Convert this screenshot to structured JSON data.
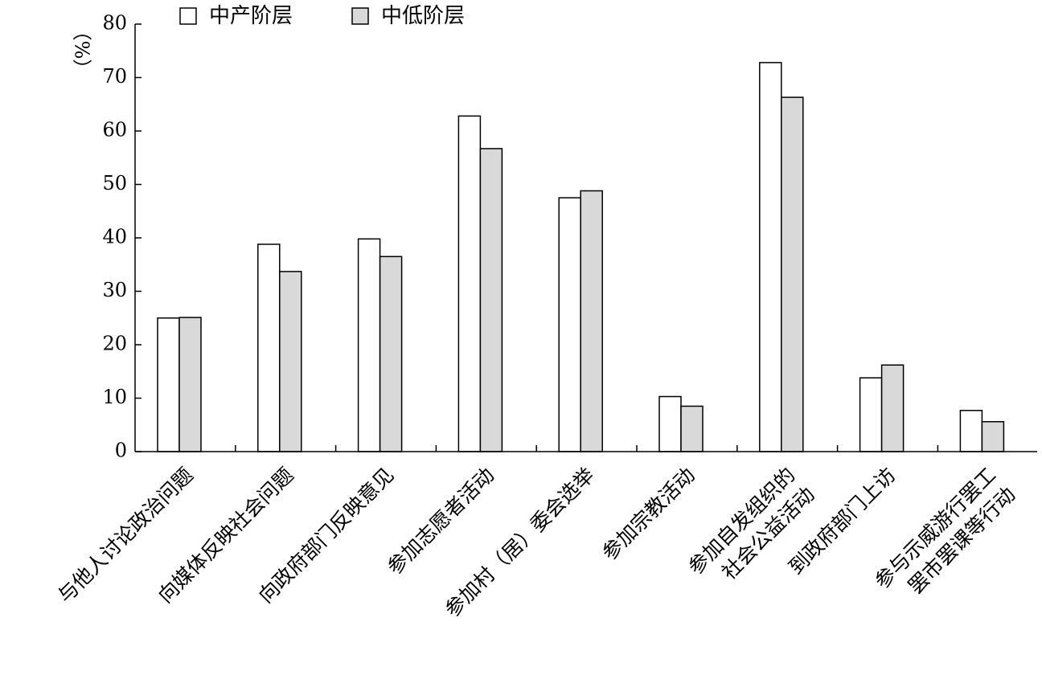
{
  "chart_data": {
    "type": "bar",
    "title": "",
    "xlabel": "",
    "ylabel": "（%）",
    "ylim": [
      0,
      80
    ],
    "yticks": [
      0,
      10,
      20,
      30,
      40,
      50,
      60,
      70,
      80
    ],
    "grid": false,
    "legend_position": "top",
    "categories": [
      [
        "与他人讨论政治问题"
      ],
      [
        "向媒体反映社会问题"
      ],
      [
        "向政府部门反映意见"
      ],
      [
        "参加志愿者活动"
      ],
      [
        "参加村（居）委会选举"
      ],
      [
        "参加宗教活动"
      ],
      [
        "参加自发组织的",
        "社会公益活动"
      ],
      [
        "到政府部门上访"
      ],
      [
        "参与示威游行罢工",
        "罢市罢课等行动"
      ]
    ],
    "series": [
      {
        "name": "中产阶层",
        "color": "#ffffff",
        "values": [
          25.0,
          38.8,
          39.8,
          62.8,
          47.5,
          10.3,
          72.8,
          13.8,
          7.7
        ]
      },
      {
        "name": "中低阶层",
        "color": "#d9d9d9",
        "values": [
          25.1,
          33.7,
          36.5,
          56.7,
          48.8,
          8.5,
          66.3,
          16.2,
          5.6
        ]
      }
    ]
  }
}
